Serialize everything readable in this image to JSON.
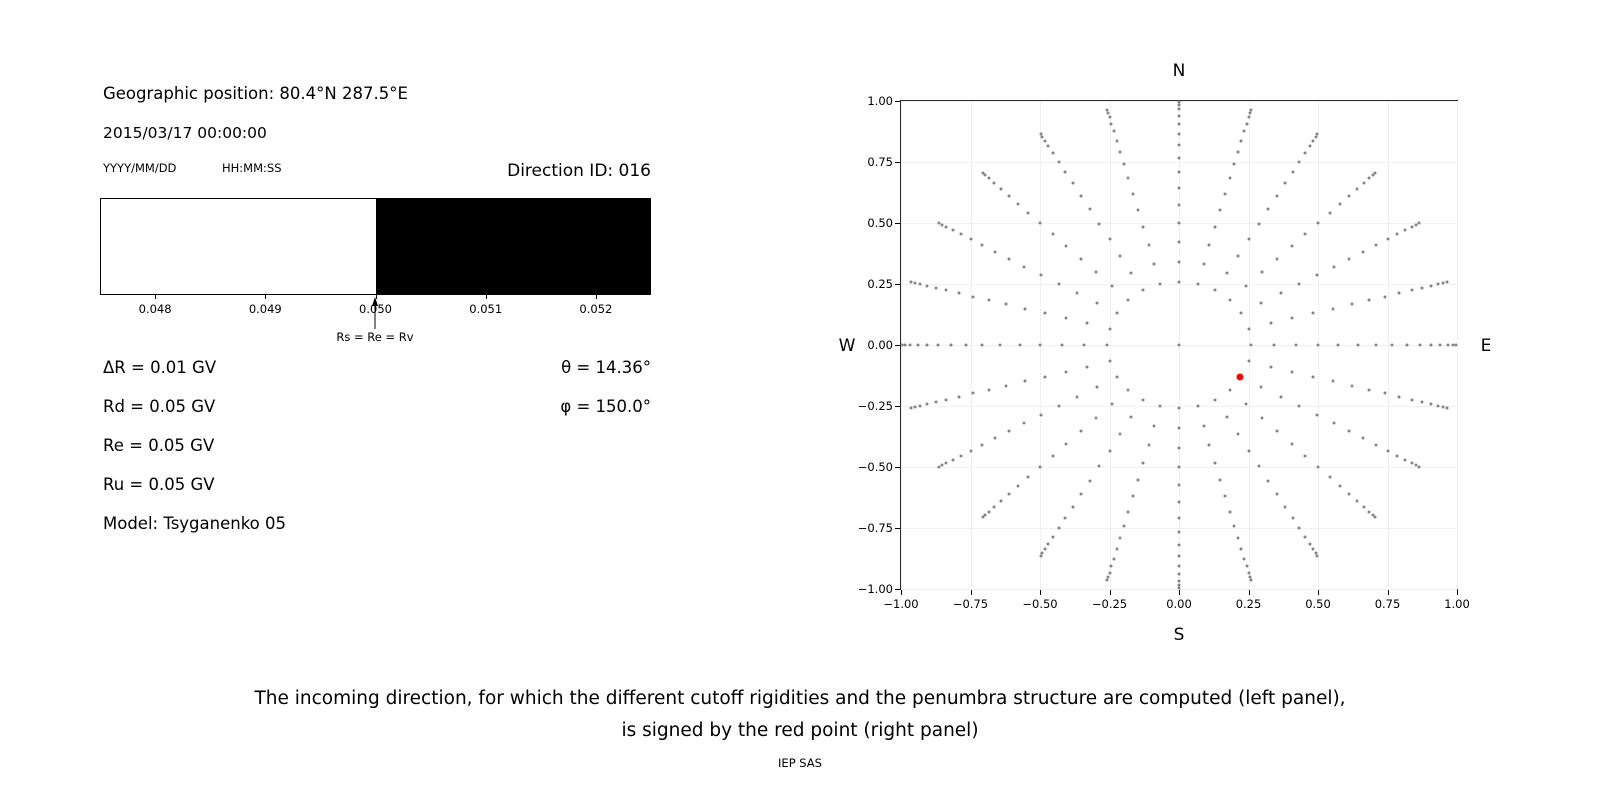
{
  "left_panel": {
    "geo_position": "Geographic position: 80.4°N 287.5°E",
    "datetime": "2015/03/17 00:00:00",
    "date_format": "YYYY/MM/DD",
    "time_format": "HH:MM:SS",
    "direction_id": "Direction ID: 016",
    "params": [
      "ΔR = 0.01 GV",
      "Rd = 0.05 GV",
      "Re = 0.05 GV",
      "Ru = 0.05 GV",
      "Model: Tsyganenko 05"
    ],
    "angles": [
      "θ = 14.36°",
      "φ = 150.0°"
    ]
  },
  "caption": {
    "line1": "The incoming direction, for which the different cutoff rigidities and the penumbra structure are computed (left panel),",
    "line2": "is signed by the red point (right panel)"
  },
  "footer": "IEP SAS",
  "chart_data": [
    {
      "type": "bar",
      "xlim": [
        0.0475,
        0.0525
      ],
      "x_tick_values": [
        0.048,
        0.049,
        0.05,
        0.051,
        0.052
      ],
      "x_tick_labels": [
        "0.048",
        "0.049",
        "0.050",
        "0.051",
        "0.052"
      ],
      "segments": [
        {
          "from": 0.0475,
          "to": 0.05,
          "fill": "#ffffff"
        },
        {
          "from": 0.05,
          "to": 0.0525,
          "fill": "#000000"
        }
      ],
      "annotation": {
        "x": 0.05,
        "label": "Rs = Re = Rv"
      }
    },
    {
      "type": "scatter",
      "xlim": [
        -1.0,
        1.0
      ],
      "ylim": [
        -1.0,
        1.0
      ],
      "x_tick_values": [
        -1.0,
        -0.75,
        -0.5,
        -0.25,
        0.0,
        0.25,
        0.5,
        0.75,
        1.0
      ],
      "x_tick_labels": [
        "−1.00",
        "−0.75",
        "−0.50",
        "−0.25",
        "0.00",
        "0.25",
        "0.50",
        "0.75",
        "1.00"
      ],
      "y_tick_values": [
        1.0,
        0.75,
        0.5,
        0.25,
        0.0,
        -0.25,
        -0.5,
        -0.75,
        -1.0
      ],
      "y_tick_labels": [
        "1.00",
        "0.75",
        "0.50",
        "0.25",
        "0.00",
        "−0.25",
        "−0.50",
        "−0.75",
        "−1.00"
      ],
      "compass": {
        "top": "N",
        "bottom": "S",
        "left": "W",
        "right": "E"
      },
      "grid_color": "#f0f0f0",
      "grey_directions": {
        "color": "#858585",
        "marker_px": 3,
        "azimuth_start_deg": 0,
        "azimuth_step_deg": 15,
        "azimuth_count": 24,
        "zenith_angles_deg": [
          15,
          20,
          25,
          30,
          35,
          40,
          45,
          50,
          55,
          60,
          65,
          70,
          75,
          80,
          85
        ],
        "projection": "x = sin(zenith)·sin(azimuth), y = sin(zenith)·cos(azimuth)",
        "include_center_point": true
      },
      "selected_direction": {
        "theta_deg": 14.36,
        "phi_deg": 150.0,
        "x": 0.22,
        "y": -0.13,
        "color": "#ff0000",
        "marker_px": 7
      }
    }
  ]
}
